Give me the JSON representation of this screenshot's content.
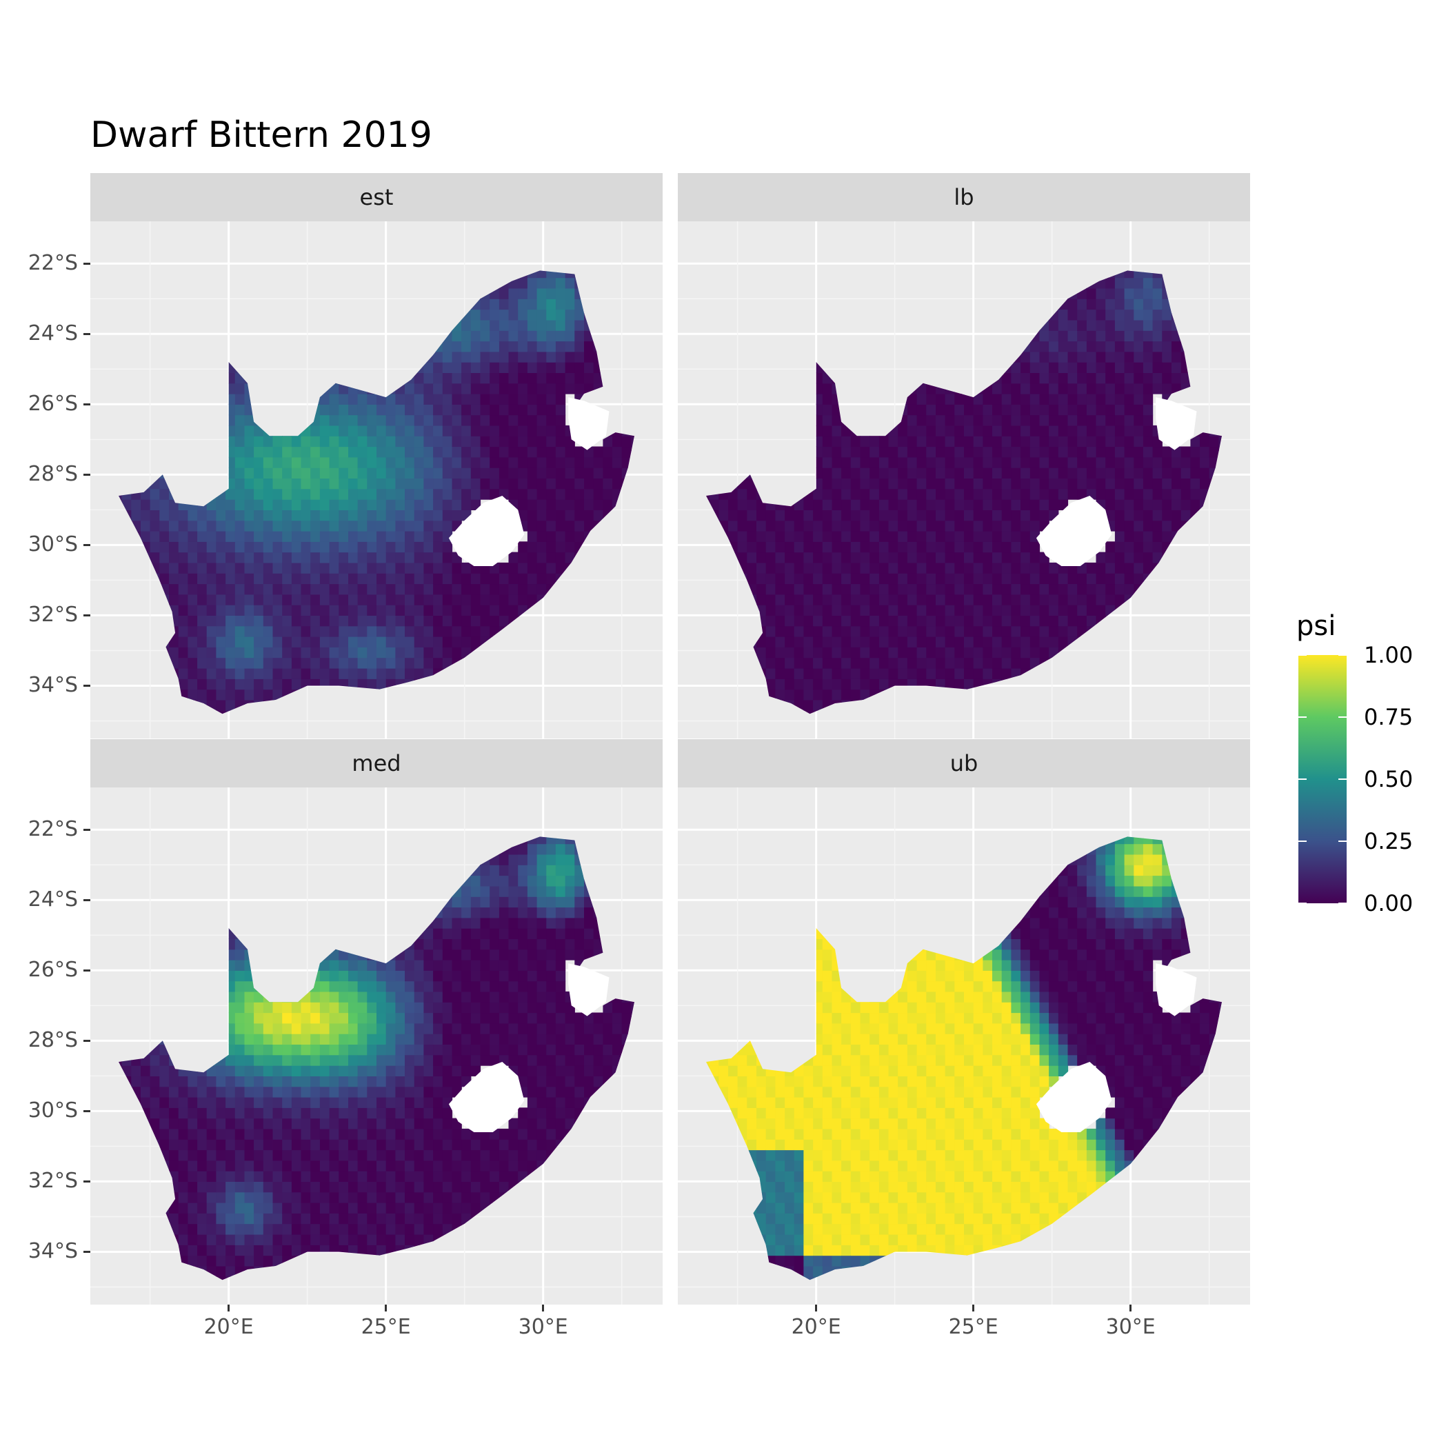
{
  "title": "Dwarf Bittern 2019",
  "panels": [
    {
      "label": "est",
      "pattern": "est"
    },
    {
      "label": "lb",
      "pattern": "lb"
    },
    {
      "label": "med",
      "pattern": "med"
    },
    {
      "label": "ub",
      "pattern": "ub"
    }
  ],
  "y_axis_labels": [
    "22°S",
    "24°S",
    "26°S",
    "28°S",
    "30°S",
    "32°S",
    "34°S"
  ],
  "x_axis_labels": [
    "20°E",
    "25°E",
    "30°E"
  ],
  "legend": {
    "title": "psi",
    "labels": [
      "1.00",
      "0.75",
      "0.50",
      "0.25",
      "0.00"
    ],
    "colors": [
      "#fde725",
      "#5ec962",
      "#21918c",
      "#3b528b",
      "#440154"
    ]
  },
  "chart_data": {
    "type": "heatmap",
    "title": "Dwarf Bittern 2019",
    "facets": [
      "est",
      "lb",
      "med",
      "ub"
    ],
    "fill_variable": "psi",
    "fill_range": [
      0,
      1
    ],
    "colormap": "viridis",
    "xlim": [
      15.6,
      33.8
    ],
    "ylim": [
      -35.5,
      -20.8
    ],
    "x_ticks": [
      20,
      25,
      30
    ],
    "y_ticks": [
      -22,
      -24,
      -26,
      -28,
      -30,
      -32,
      -34
    ],
    "grid": true
  }
}
